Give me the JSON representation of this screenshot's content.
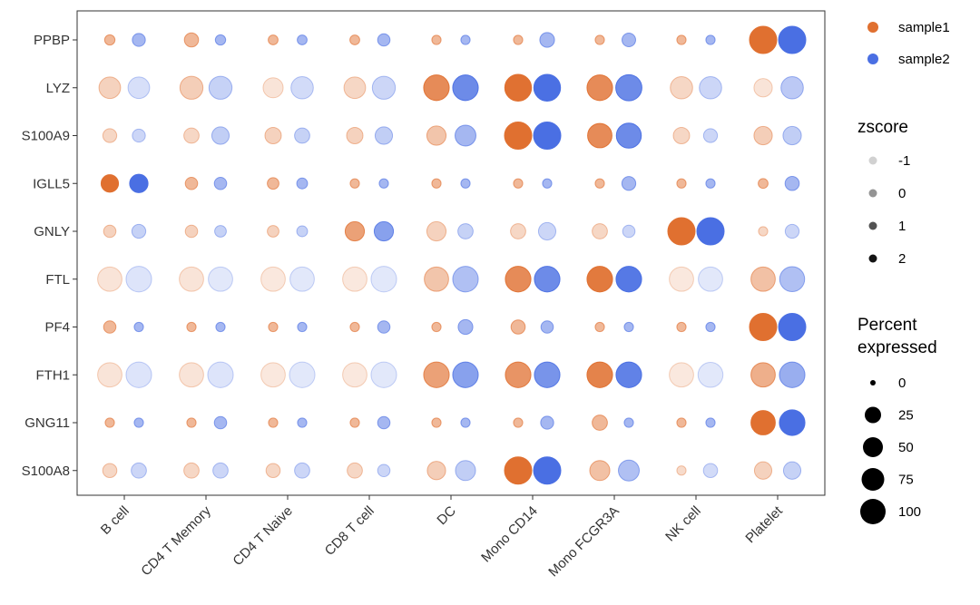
{
  "chart_data": {
    "type": "dotplot",
    "genes": [
      "PPBP",
      "LYZ",
      "S100A9",
      "IGLL5",
      "GNLY",
      "FTL",
      "PF4",
      "FTH1",
      "GNG11",
      "S100A8"
    ],
    "cell_types": [
      "B cell",
      "CD4 T Memory",
      "CD4 T Naive",
      "CD8 T cell",
      "DC",
      "Mono CD14",
      "Mono FCGR3A",
      "NK cell",
      "Platelet"
    ],
    "samples": [
      {
        "name": "sample1",
        "color": "#E07030"
      },
      {
        "name": "sample2",
        "color": "#4A6FE3"
      }
    ],
    "percent_expressed": [
      [
        [
          5,
          12
        ],
        [
          16,
          5
        ],
        [
          4,
          4
        ],
        [
          4,
          10
        ],
        [
          3,
          3
        ],
        [
          3,
          18
        ],
        [
          3,
          14
        ],
        [
          3,
          3
        ],
        [
          100,
          100
        ]
      ],
      [
        [
          55,
          55
        ],
        [
          65,
          65
        ],
        [
          45,
          60
        ],
        [
          55,
          65
        ],
        [
          85,
          85
        ],
        [
          95,
          95
        ],
        [
          85,
          90
        ],
        [
          60,
          60
        ],
        [
          35,
          60
        ]
      ],
      [
        [
          15,
          12
        ],
        [
          20,
          30
        ],
        [
          25,
          20
        ],
        [
          25,
          30
        ],
        [
          40,
          50
        ],
        [
          100,
          100
        ],
        [
          75,
          80
        ],
        [
          25,
          15
        ],
        [
          35,
          35
        ]
      ],
      [
        [
          30,
          35
        ],
        [
          10,
          10
        ],
        [
          8,
          6
        ],
        [
          3,
          3
        ],
        [
          3,
          3
        ],
        [
          3,
          3
        ],
        [
          3,
          15
        ],
        [
          3,
          3
        ],
        [
          4,
          16
        ]
      ],
      [
        [
          10,
          15
        ],
        [
          10,
          8
        ],
        [
          8,
          6
        ],
        [
          40,
          40
        ],
        [
          40,
          20
        ],
        [
          20,
          30
        ],
        [
          20,
          10
        ],
        [
          100,
          100
        ],
        [
          3,
          15
        ]
      ],
      [
        [
          75,
          85
        ],
        [
          75,
          75
        ],
        [
          75,
          75
        ],
        [
          75,
          85
        ],
        [
          75,
          85
        ],
        [
          85,
          85
        ],
        [
          85,
          85
        ],
        [
          75,
          75
        ],
        [
          75,
          80
        ]
      ],
      [
        [
          10,
          3
        ],
        [
          3,
          3
        ],
        [
          3,
          3
        ],
        [
          3,
          10
        ],
        [
          3,
          18
        ],
        [
          16,
          10
        ],
        [
          3,
          3
        ],
        [
          3,
          3
        ],
        [
          100,
          100
        ]
      ],
      [
        [
          75,
          85
        ],
        [
          75,
          85
        ],
        [
          75,
          85
        ],
        [
          75,
          85
        ],
        [
          85,
          85
        ],
        [
          85,
          85
        ],
        [
          85,
          85
        ],
        [
          75,
          80
        ],
        [
          75,
          85
        ]
      ],
      [
        [
          3,
          3
        ],
        [
          3,
          10
        ],
        [
          3,
          3
        ],
        [
          3,
          10
        ],
        [
          3,
          3
        ],
        [
          3,
          12
        ],
        [
          20,
          3
        ],
        [
          3,
          3
        ],
        [
          75,
          85
        ]
      ],
      [
        [
          16,
          20
        ],
        [
          20,
          20
        ],
        [
          16,
          20
        ],
        [
          20,
          10
        ],
        [
          35,
          45
        ],
        [
          100,
          100
        ],
        [
          45,
          50
        ],
        [
          3,
          16
        ],
        [
          30,
          30
        ]
      ]
    ],
    "zscore": [
      [
        [
          0,
          0
        ],
        [
          0,
          0
        ],
        [
          0,
          0
        ],
        [
          0,
          0
        ],
        [
          0,
          0
        ],
        [
          0,
          0
        ],
        [
          0,
          0
        ],
        [
          0,
          0
        ],
        [
          3,
          3
        ]
      ],
      [
        [
          -0.6,
          -0.9
        ],
        [
          -0.5,
          -0.6
        ],
        [
          -1,
          -0.8
        ],
        [
          -0.7,
          -0.7
        ],
        [
          1,
          1
        ],
        [
          1.6,
          1.6
        ],
        [
          1,
          1
        ],
        [
          -0.7,
          -0.7
        ],
        [
          -1,
          -0.4
        ]
      ],
      [
        [
          -0.7,
          -0.7
        ],
        [
          -0.7,
          -0.5
        ],
        [
          -0.6,
          -0.6
        ],
        [
          -0.6,
          -0.5
        ],
        [
          -0.3,
          0
        ],
        [
          3,
          3
        ],
        [
          1,
          1
        ],
        [
          -0.7,
          -0.7
        ],
        [
          -0.5,
          -0.5
        ]
      ],
      [
        [
          3,
          3
        ],
        [
          0,
          0
        ],
        [
          0,
          0
        ],
        [
          0,
          0
        ],
        [
          0,
          0
        ],
        [
          0,
          0
        ],
        [
          0,
          0
        ],
        [
          0,
          0
        ],
        [
          0,
          0
        ]
      ],
      [
        [
          -0.6,
          -0.6
        ],
        [
          -0.6,
          -0.6
        ],
        [
          -0.6,
          -0.6
        ],
        [
          0.5,
          0.5
        ],
        [
          -0.6,
          -0.6
        ],
        [
          -0.7,
          -0.7
        ],
        [
          -0.7,
          -0.7
        ],
        [
          3,
          3
        ],
        [
          -0.7,
          -0.7
        ]
      ],
      [
        [
          -1,
          -1
        ],
        [
          -1,
          -1.4
        ],
        [
          -1.1,
          -1.1
        ],
        [
          -1.2,
          -1.1
        ],
        [
          -0.3,
          -0.2
        ],
        [
          1,
          1
        ],
        [
          1.4,
          1.4
        ],
        [
          -1.2,
          -1.2
        ],
        [
          -0.2,
          -0.2
        ]
      ],
      [
        [
          0,
          0
        ],
        [
          0,
          0
        ],
        [
          0,
          0
        ],
        [
          0,
          0
        ],
        [
          0,
          0
        ],
        [
          0,
          0
        ],
        [
          0,
          0
        ],
        [
          0,
          0
        ],
        [
          3,
          3
        ]
      ],
      [
        [
          -1,
          -1
        ],
        [
          -1,
          -1
        ],
        [
          -1.1,
          -1.1
        ],
        [
          -1.2,
          -1.2
        ],
        [
          0.5,
          0.5
        ],
        [
          0.8,
          0.8
        ],
        [
          1.2,
          1.2
        ],
        [
          -1.4,
          -1.4
        ],
        [
          0.2,
          0.2
        ]
      ],
      [
        [
          0,
          0
        ],
        [
          0,
          0
        ],
        [
          0,
          0
        ],
        [
          0,
          0
        ],
        [
          0,
          0
        ],
        [
          0,
          0
        ],
        [
          0,
          0
        ],
        [
          0,
          0
        ],
        [
          3,
          3
        ]
      ],
      [
        [
          -0.7,
          -0.7
        ],
        [
          -0.7,
          -0.7
        ],
        [
          -0.7,
          -0.7
        ],
        [
          -0.7,
          -0.7
        ],
        [
          -0.5,
          -0.5
        ],
        [
          3,
          3
        ],
        [
          -0.2,
          -0.2
        ],
        [
          -0.8,
          -0.8
        ],
        [
          -0.6,
          -0.6
        ]
      ]
    ],
    "legends": {
      "group": {
        "title": "",
        "entries": [
          "sample1",
          "sample2"
        ]
      },
      "zscore": {
        "title": "zscore",
        "entries": [
          "-1",
          "0",
          "1",
          "2"
        ]
      },
      "percent": {
        "title": "Percent expressed",
        "entries": [
          "0",
          "25",
          "50",
          "75",
          "100"
        ]
      }
    },
    "xlabel": "",
    "ylabel": "",
    "grid": false,
    "legend_position": "right"
  }
}
